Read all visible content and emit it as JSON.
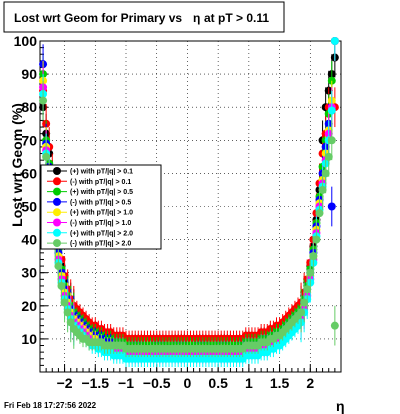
{
  "footer": {
    "timestamp": "Fri Feb 18 17:27:56 2022"
  },
  "chart_data": {
    "type": "scatter",
    "title_left": "Lost wrt Geom for Primary vs",
    "title_symbol": "η",
    "title_right": "at pT > 0.11",
    "xlabel": "η",
    "ylabel": "Lost wrt Geom (%)",
    "xlim": [
      -2.4,
      2.5
    ],
    "ylim": [
      0,
      100
    ],
    "x_ticks": [
      -2,
      -1.5,
      -1,
      -0.5,
      0,
      0.5,
      1,
      1.5,
      2
    ],
    "x_tick_labels": [
      "−2",
      "−1.5",
      "−1",
      "−0.5",
      "0",
      "0.5",
      "1",
      "1.5",
      "2"
    ],
    "y_ticks": [
      10,
      20,
      30,
      40,
      50,
      60,
      70,
      80,
      90,
      100
    ],
    "y_tick_labels": [
      "10",
      "20",
      "30",
      "40",
      "50",
      "60",
      "70",
      "80",
      "90",
      "100"
    ],
    "grid": true,
    "legend_position": "left-middle",
    "x": [
      -2.35,
      -2.3,
      -2.25,
      -2.2,
      -2.15,
      -2.1,
      -2.05,
      -2.0,
      -1.95,
      -1.9,
      -1.85,
      -1.8,
      -1.75,
      -1.7,
      -1.65,
      -1.6,
      -1.55,
      -1.5,
      -1.45,
      -1.4,
      -1.35,
      -1.3,
      -1.25,
      -1.2,
      -1.15,
      -1.1,
      -1.05,
      -1.0,
      -0.95,
      -0.9,
      -0.85,
      -0.8,
      -0.75,
      -0.7,
      -0.65,
      -0.6,
      -0.55,
      -0.5,
      -0.45,
      -0.4,
      -0.35,
      -0.3,
      -0.25,
      -0.2,
      -0.15,
      -0.1,
      -0.05,
      0.0,
      0.05,
      0.1,
      0.15,
      0.2,
      0.25,
      0.3,
      0.35,
      0.4,
      0.45,
      0.5,
      0.55,
      0.6,
      0.65,
      0.7,
      0.75,
      0.8,
      0.85,
      0.9,
      0.95,
      1.0,
      1.05,
      1.1,
      1.15,
      1.2,
      1.25,
      1.3,
      1.35,
      1.4,
      1.45,
      1.5,
      1.55,
      1.6,
      1.65,
      1.7,
      1.75,
      1.8,
      1.85,
      1.9,
      1.95,
      2.0,
      2.05,
      2.1,
      2.15,
      2.2,
      2.25,
      2.3,
      2.35,
      2.4
    ],
    "series": [
      {
        "name": "(+) with pT/|q| > 0.1",
        "color": "#000000",
        "marker": "circle",
        "values": [
          80,
          72,
          66,
          58,
          45,
          38,
          32,
          27,
          24,
          21,
          19,
          18,
          17,
          16,
          15,
          14,
          13,
          13,
          12,
          12,
          11,
          11,
          11,
          10,
          10,
          10,
          10,
          9,
          9,
          9,
          9,
          9,
          9,
          9,
          9,
          9,
          9,
          9,
          9,
          9,
          9,
          9,
          9,
          9,
          9,
          9,
          9,
          9,
          9,
          9,
          9,
          9,
          9,
          9,
          9,
          9,
          9,
          9,
          9,
          9,
          9,
          9,
          9,
          9,
          9,
          9,
          10,
          10,
          10,
          10,
          10,
          11,
          11,
          11,
          12,
          12,
          13,
          13,
          14,
          15,
          16,
          17,
          18,
          19,
          20,
          23,
          27,
          32,
          38,
          46,
          55,
          70,
          80,
          85,
          90,
          95
        ]
      },
      {
        "name": "(-) with pT/|q| > 0.1",
        "color": "#ff0000",
        "marker": "circle",
        "values": [
          85,
          75,
          68,
          60,
          47,
          40,
          34,
          29,
          25,
          22,
          20,
          19,
          18,
          17,
          16,
          15,
          14,
          14,
          13,
          13,
          12,
          12,
          12,
          11,
          11,
          11,
          11,
          10,
          10,
          10,
          10,
          10,
          10,
          10,
          10,
          10,
          10,
          10,
          10,
          10,
          10,
          10,
          10,
          10,
          10,
          10,
          10,
          10,
          10,
          10,
          10,
          10,
          10,
          10,
          10,
          10,
          10,
          10,
          10,
          10,
          10,
          10,
          10,
          10,
          10,
          10,
          11,
          11,
          11,
          11,
          11,
          12,
          12,
          12,
          13,
          13,
          14,
          14,
          15,
          16,
          17,
          18,
          19,
          20,
          21,
          24,
          28,
          33,
          40,
          48,
          57,
          66,
          72,
          80,
          80,
          80
        ]
      },
      {
        "name": "(+) with pT/|q| > 0.5",
        "color": "#00cc00",
        "marker": "circle",
        "values": [
          90,
          70,
          63,
          55,
          44,
          37,
          31,
          26,
          23,
          20,
          18,
          17,
          16,
          15,
          14,
          13,
          12,
          12,
          11,
          11,
          10,
          10,
          10,
          9,
          9,
          9,
          9,
          8,
          8,
          8,
          8,
          8,
          8,
          8,
          8,
          8,
          8,
          8,
          8,
          8,
          8,
          8,
          8,
          8,
          8,
          8,
          8,
          8,
          8,
          8,
          8,
          8,
          8,
          8,
          8,
          8,
          8,
          8,
          8,
          8,
          8,
          8,
          8,
          8,
          8,
          8,
          9,
          9,
          9,
          9,
          9,
          10,
          10,
          10,
          11,
          11,
          12,
          12,
          13,
          14,
          15,
          16,
          17,
          18,
          19,
          22,
          26,
          31,
          37,
          45,
          53,
          62,
          70,
          78,
          88,
          100
        ]
      },
      {
        "name": "(-) with pT/|q| > 0.5",
        "color": "#0000ff",
        "marker": "circle",
        "values": [
          93,
          69,
          62,
          54,
          43,
          36,
          30,
          25,
          22,
          19,
          17,
          16,
          15,
          14,
          13,
          12,
          11,
          11,
          10,
          10,
          9,
          9,
          9,
          8,
          8,
          8,
          8,
          7,
          7,
          7,
          7,
          7,
          7,
          7,
          7,
          7,
          7,
          7,
          7,
          7,
          7,
          7,
          7,
          7,
          7,
          7,
          7,
          7,
          7,
          7,
          7,
          7,
          7,
          7,
          7,
          7,
          7,
          7,
          7,
          7,
          7,
          7,
          7,
          7,
          7,
          7,
          8,
          8,
          8,
          8,
          8,
          9,
          9,
          9,
          10,
          10,
          11,
          11,
          12,
          13,
          14,
          15,
          16,
          17,
          18,
          21,
          25,
          30,
          36,
          44,
          52,
          60,
          68,
          75,
          50,
          100
        ]
      },
      {
        "name": "(+) with pT/|q| > 1.0",
        "color": "#ffee00",
        "marker": "circle",
        "values": [
          88,
          68,
          61,
          53,
          42,
          35,
          29,
          24,
          21,
          18,
          16,
          15,
          14,
          13,
          12,
          11,
          10,
          10,
          9,
          9,
          8,
          8,
          8,
          7,
          7,
          7,
          7,
          6,
          6,
          6,
          6,
          6,
          6,
          6,
          6,
          6,
          6,
          6,
          6,
          6,
          6,
          6,
          6,
          6,
          6,
          6,
          6,
          6,
          6,
          6,
          6,
          6,
          6,
          6,
          6,
          6,
          6,
          6,
          6,
          6,
          6,
          6,
          6,
          6,
          6,
          6,
          7,
          7,
          7,
          7,
          7,
          8,
          8,
          8,
          9,
          9,
          10,
          10,
          11,
          12,
          13,
          14,
          15,
          16,
          17,
          20,
          24,
          29,
          35,
          43,
          51,
          58,
          66,
          73,
          82,
          100
        ]
      },
      {
        "name": "(-) with pT/|q| > 1.0",
        "color": "#ff00ff",
        "marker": "circle",
        "values": [
          86,
          67,
          60,
          52,
          41,
          34,
          28,
          23,
          20,
          17,
          15,
          14,
          13,
          12,
          11,
          10,
          9,
          9,
          8,
          8,
          7,
          7,
          7,
          6,
          6,
          6,
          6,
          5,
          5,
          5,
          5,
          5,
          5,
          5,
          5,
          5,
          5,
          5,
          5,
          5,
          5,
          5,
          5,
          5,
          5,
          5,
          5,
          5,
          5,
          5,
          5,
          5,
          5,
          5,
          5,
          5,
          5,
          5,
          5,
          5,
          5,
          5,
          5,
          5,
          5,
          5,
          6,
          6,
          6,
          6,
          6,
          7,
          7,
          7,
          8,
          8,
          9,
          9,
          10,
          11,
          12,
          13,
          14,
          15,
          16,
          19,
          23,
          28,
          34,
          42,
          50,
          57,
          64,
          72,
          80,
          100
        ]
      },
      {
        "name": "(+) with pT/|q| > 2.0",
        "color": "#00ffff",
        "marker": "circle",
        "values": [
          84,
          66,
          59,
          51,
          40,
          33,
          27,
          22,
          19,
          16,
          14,
          13,
          12,
          11,
          10,
          9,
          8,
          8,
          7,
          7,
          6,
          6,
          6,
          5,
          5,
          5,
          5,
          4,
          4,
          4,
          4,
          4,
          4,
          4,
          4,
          4,
          4,
          4,
          4,
          4,
          4,
          4,
          4,
          4,
          4,
          4,
          4,
          4,
          4,
          4,
          4,
          4,
          4,
          4,
          4,
          4,
          4,
          4,
          4,
          4,
          4,
          4,
          4,
          4,
          4,
          4,
          5,
          5,
          5,
          5,
          5,
          6,
          6,
          6,
          7,
          7,
          8,
          8,
          9,
          10,
          11,
          12,
          13,
          14,
          15,
          18,
          22,
          27,
          33,
          41,
          49,
          56,
          63,
          70,
          79,
          100
        ]
      },
      {
        "name": "(-) with pT/|q| > 2.0",
        "color": "#66cc66",
        "marker": "circle",
        "values": [
          82,
          65,
          58,
          50,
          39,
          32,
          26,
          21,
          18,
          15,
          13,
          12,
          11,
          10,
          10,
          9,
          9,
          9,
          9,
          9,
          8,
          8,
          8,
          8,
          8,
          8,
          8,
          7,
          7,
          7,
          7,
          7,
          7,
          7,
          7,
          7,
          7,
          7,
          7,
          7,
          7,
          7,
          7,
          7,
          7,
          7,
          7,
          7,
          7,
          7,
          7,
          7,
          7,
          7,
          7,
          7,
          7,
          7,
          7,
          7,
          7,
          7,
          7,
          7,
          7,
          7,
          8,
          8,
          8,
          8,
          8,
          9,
          9,
          9,
          10,
          10,
          11,
          11,
          12,
          13,
          14,
          15,
          16,
          17,
          18,
          21,
          25,
          30,
          35,
          40,
          48,
          55,
          60,
          65,
          70,
          14
        ]
      }
    ]
  }
}
